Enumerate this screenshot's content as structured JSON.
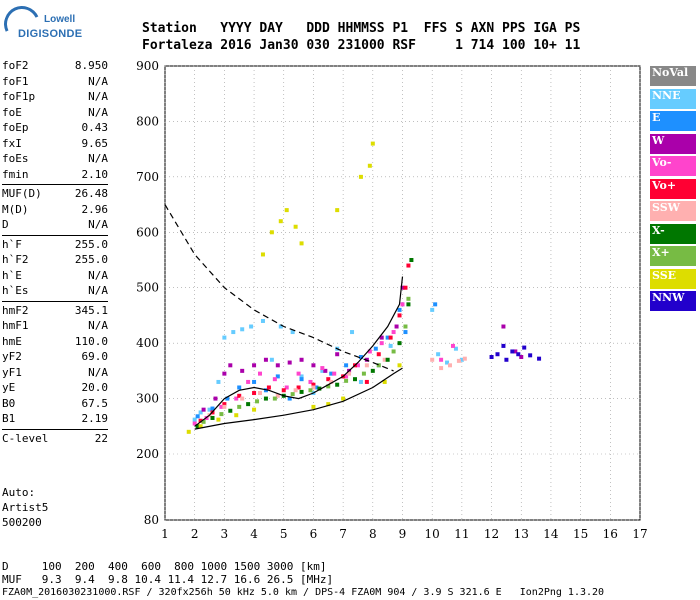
{
  "logo": {
    "line1": "Lowell",
    "line2": "DIGISONDE"
  },
  "header": {
    "labels": "Station   YYYY DAY   DDD HHMMSS P1  FFS S AXN PPS IGA PS",
    "values": "Fortaleza 2016 Jan30 030 231000 RSF     1 714 100 10+ 11"
  },
  "params": [
    [
      {
        "k": "foF2",
        "v": "8.950"
      },
      {
        "k": "foF1",
        "v": "N/A"
      },
      {
        "k": "foF1p",
        "v": "N/A"
      },
      {
        "k": "foE",
        "v": "N/A"
      },
      {
        "k": "foEp",
        "v": "0.43"
      },
      {
        "k": "fxI",
        "v": "9.65"
      },
      {
        "k": "foEs",
        "v": "N/A"
      },
      {
        "k": "fmin",
        "v": "2.10"
      }
    ],
    [
      {
        "k": "MUF(D)",
        "v": "26.48"
      },
      {
        "k": "M(D)",
        "v": "2.96"
      },
      {
        "k": "D",
        "v": "N/A"
      }
    ],
    [
      {
        "k": "h`F",
        "v": "255.0"
      },
      {
        "k": "h`F2",
        "v": "255.0"
      },
      {
        "k": "h`E",
        "v": "N/A"
      },
      {
        "k": "h`Es",
        "v": "N/A"
      }
    ],
    [
      {
        "k": "hmF2",
        "v": "345.1"
      },
      {
        "k": "hmF1",
        "v": "N/A"
      },
      {
        "k": "hmE",
        "v": "110.0"
      },
      {
        "k": "yF2",
        "v": "69.0"
      },
      {
        "k": "yF1",
        "v": "N/A"
      },
      {
        "k": "yE",
        "v": "20.0"
      },
      {
        "k": "B0",
        "v": "67.5"
      },
      {
        "k": "B1",
        "v": "2.19"
      }
    ],
    [
      {
        "k": "C-level",
        "v": "22"
      }
    ]
  ],
  "auto": {
    "line1": "Auto:",
    "line2": "Artist5",
    "line3": "500200"
  },
  "legend": [
    {
      "label": "NoVal",
      "color": "#888888"
    },
    {
      "label": "NNE",
      "color": "#66ccff"
    },
    {
      "label": "E",
      "color": "#1e90ff"
    },
    {
      "label": "W",
      "color": "#aa00aa"
    },
    {
      "label": "Vo-",
      "color": "#ff44cc"
    },
    {
      "label": "Vo+",
      "color": "#ff0033"
    },
    {
      "label": "SSW",
      "color": "#ffb0b0"
    },
    {
      "label": "X-",
      "color": "#007700"
    },
    {
      "label": "X+",
      "color": "#77bb44"
    },
    {
      "label": "SSE",
      "color": "#dddd00"
    },
    {
      "label": "NNW",
      "color": "#2200cc"
    }
  ],
  "muf_table": {
    "d_line": "D     100  200  400  600  800 1000 1500 3000 [km]",
    "muf_line": "MUF   9.3  9.4  9.8 10.4 11.4 12.7 16.6 26.5 [MHz]"
  },
  "footer": "FZA0M_2016030231000.RSF / 320fx256h 50 kHz 5.0 km / DPS-4 FZA0M 904 / 3.9 S 321.6 E   Ion2Png 1.3.20",
  "chart_data": {
    "type": "scatter",
    "xlim": [
      1,
      17
    ],
    "ylim": [
      80,
      900
    ],
    "x_ticks": [
      1,
      2,
      3,
      4,
      5,
      6,
      7,
      8,
      9,
      10,
      11,
      12,
      13,
      14,
      15,
      16,
      17
    ],
    "y_ticks": [
      80,
      200,
      300,
      400,
      500,
      600,
      700,
      800,
      900
    ],
    "grid": true,
    "legend_position": "right",
    "series": [
      {
        "name": "NoVal",
        "color": "#888888",
        "points": []
      },
      {
        "name": "NNE",
        "color": "#66ccff",
        "points": [
          [
            2.0,
            262
          ],
          [
            2.2,
            275
          ],
          [
            2.5,
            280
          ],
          [
            2.8,
            330
          ],
          [
            3.0,
            410
          ],
          [
            3.3,
            420
          ],
          [
            3.6,
            425
          ],
          [
            3.9,
            430
          ],
          [
            4.3,
            440
          ],
          [
            4.6,
            370
          ],
          [
            4.9,
            430
          ],
          [
            5.3,
            420
          ],
          [
            5.6,
            340
          ],
          [
            6.0,
            310
          ],
          [
            6.3,
            350
          ],
          [
            6.8,
            390
          ],
          [
            7.3,
            420
          ],
          [
            7.6,
            330
          ],
          [
            8.2,
            360
          ],
          [
            8.6,
            395
          ],
          [
            9.0,
            470
          ],
          [
            10.0,
            460
          ],
          [
            10.2,
            380
          ],
          [
            10.5,
            365
          ],
          [
            10.8,
            390
          ],
          [
            11.0,
            370
          ]
        ]
      },
      {
        "name": "E",
        "color": "#1e90ff",
        "points": [
          [
            2.1,
            268
          ],
          [
            2.6,
            282
          ],
          [
            3.1,
            300
          ],
          [
            3.5,
            320
          ],
          [
            4.0,
            330
          ],
          [
            4.4,
            315
          ],
          [
            4.8,
            340
          ],
          [
            5.2,
            300
          ],
          [
            5.6,
            335
          ],
          [
            6.1,
            320
          ],
          [
            6.6,
            345
          ],
          [
            7.1,
            360
          ],
          [
            7.6,
            375
          ],
          [
            8.1,
            390
          ],
          [
            8.5,
            410
          ],
          [
            8.9,
            460
          ],
          [
            9.1,
            420
          ],
          [
            10.1,
            470
          ]
        ]
      },
      {
        "name": "W",
        "color": "#aa00aa",
        "points": [
          [
            2.3,
            280
          ],
          [
            2.7,
            300
          ],
          [
            3.0,
            345
          ],
          [
            3.2,
            360
          ],
          [
            3.6,
            350
          ],
          [
            4.0,
            360
          ],
          [
            4.4,
            370
          ],
          [
            4.8,
            360
          ],
          [
            5.2,
            365
          ],
          [
            5.6,
            370
          ],
          [
            6.0,
            360
          ],
          [
            6.4,
            350
          ],
          [
            6.8,
            380
          ],
          [
            7.2,
            350
          ],
          [
            7.8,
            370
          ],
          [
            8.3,
            410
          ],
          [
            8.8,
            430
          ],
          [
            9.0,
            500
          ],
          [
            12.4,
            430
          ],
          [
            12.8,
            385
          ],
          [
            13.0,
            375
          ]
        ]
      },
      {
        "name": "Vo-",
        "color": "#ff44cc",
        "points": [
          [
            2.0,
            255
          ],
          [
            2.4,
            265
          ],
          [
            2.9,
            285
          ],
          [
            3.4,
            300
          ],
          [
            3.8,
            330
          ],
          [
            4.2,
            345
          ],
          [
            4.7,
            335
          ],
          [
            5.1,
            320
          ],
          [
            5.5,
            345
          ],
          [
            5.9,
            330
          ],
          [
            6.3,
            355
          ],
          [
            6.7,
            345
          ],
          [
            7.1,
            340
          ],
          [
            7.5,
            360
          ],
          [
            7.9,
            385
          ],
          [
            8.3,
            400
          ],
          [
            8.7,
            420
          ],
          [
            9.0,
            470
          ],
          [
            10.3,
            370
          ],
          [
            10.7,
            395
          ]
        ]
      },
      {
        "name": "Vo+",
        "color": "#ff0033",
        "points": [
          [
            2.2,
            260
          ],
          [
            2.6,
            275
          ],
          [
            3.0,
            290
          ],
          [
            3.5,
            305
          ],
          [
            4.0,
            310
          ],
          [
            4.5,
            320
          ],
          [
            5.0,
            315
          ],
          [
            5.5,
            320
          ],
          [
            6.0,
            325
          ],
          [
            6.5,
            335
          ],
          [
            7.0,
            340
          ],
          [
            7.4,
            360
          ],
          [
            7.8,
            330
          ],
          [
            8.2,
            380
          ],
          [
            8.6,
            410
          ],
          [
            8.9,
            450
          ],
          [
            9.1,
            500
          ],
          [
            9.2,
            540
          ]
        ]
      },
      {
        "name": "SSW",
        "color": "#ffb0b0",
        "points": [
          [
            2.5,
            270
          ],
          [
            3.0,
            285
          ],
          [
            3.6,
            300
          ],
          [
            4.2,
            310
          ],
          [
            4.8,
            305
          ],
          [
            5.4,
            315
          ],
          [
            6.0,
            320
          ],
          [
            6.6,
            330
          ],
          [
            7.2,
            345
          ],
          [
            7.8,
            360
          ],
          [
            8.4,
            370
          ],
          [
            10.0,
            370
          ],
          [
            10.3,
            355
          ],
          [
            10.6,
            360
          ],
          [
            10.9,
            368
          ],
          [
            11.1,
            372
          ]
        ]
      },
      {
        "name": "X-",
        "color": "#007700",
        "points": [
          [
            2.1,
            250
          ],
          [
            2.6,
            265
          ],
          [
            3.2,
            278
          ],
          [
            3.8,
            290
          ],
          [
            4.4,
            300
          ],
          [
            5.0,
            305
          ],
          [
            5.6,
            312
          ],
          [
            6.2,
            318
          ],
          [
            6.8,
            325
          ],
          [
            7.4,
            335
          ],
          [
            8.0,
            350
          ],
          [
            8.5,
            370
          ],
          [
            8.9,
            400
          ],
          [
            9.2,
            470
          ],
          [
            9.3,
            550
          ]
        ]
      },
      {
        "name": "X+",
        "color": "#77bb44",
        "points": [
          [
            2.3,
            258
          ],
          [
            2.9,
            272
          ],
          [
            3.5,
            285
          ],
          [
            4.1,
            295
          ],
          [
            4.7,
            300
          ],
          [
            5.3,
            308
          ],
          [
            5.9,
            315
          ],
          [
            6.5,
            322
          ],
          [
            7.1,
            332
          ],
          [
            7.7,
            345
          ],
          [
            8.2,
            360
          ],
          [
            8.7,
            385
          ],
          [
            9.1,
            430
          ],
          [
            9.2,
            480
          ]
        ]
      },
      {
        "name": "SSE",
        "color": "#dddd00",
        "points": [
          [
            1.8,
            240
          ],
          [
            2.2,
            250
          ],
          [
            2.8,
            262
          ],
          [
            3.4,
            270
          ],
          [
            4.0,
            280
          ],
          [
            4.3,
            560
          ],
          [
            4.6,
            600
          ],
          [
            4.9,
            620
          ],
          [
            5.1,
            640
          ],
          [
            5.4,
            610
          ],
          [
            5.6,
            580
          ],
          [
            6.0,
            285
          ],
          [
            6.5,
            290
          ],
          [
            6.8,
            640
          ],
          [
            7.0,
            300
          ],
          [
            7.6,
            700
          ],
          [
            7.9,
            720
          ],
          [
            8.0,
            760
          ],
          [
            8.4,
            330
          ],
          [
            8.9,
            360
          ]
        ]
      },
      {
        "name": "NNW",
        "color": "#2200cc",
        "points": [
          [
            12.0,
            375
          ],
          [
            12.2,
            380
          ],
          [
            12.4,
            395
          ],
          [
            12.5,
            370
          ],
          [
            12.7,
            385
          ],
          [
            12.9,
            380
          ],
          [
            13.1,
            392
          ],
          [
            13.3,
            378
          ],
          [
            13.6,
            372
          ]
        ]
      }
    ],
    "curves": [
      {
        "style": "dashed",
        "points": [
          [
            1,
            650
          ],
          [
            2,
            560
          ],
          [
            3,
            500
          ],
          [
            4,
            460
          ],
          [
            5,
            430
          ],
          [
            6,
            410
          ],
          [
            7,
            385
          ],
          [
            8,
            365
          ],
          [
            8.7,
            350
          ]
        ]
      },
      {
        "style": "solid",
        "points": [
          [
            2,
            245
          ],
          [
            3,
            255
          ],
          [
            4,
            262
          ],
          [
            5,
            270
          ],
          [
            6,
            280
          ],
          [
            7,
            295
          ],
          [
            8,
            320
          ],
          [
            8.7,
            345
          ],
          [
            9.0,
            355
          ]
        ]
      },
      {
        "style": "solid",
        "points": [
          [
            2,
            250
          ],
          [
            2.5,
            270
          ],
          [
            3,
            300
          ],
          [
            3.5,
            315
          ],
          [
            4,
            320
          ],
          [
            4.5,
            315
          ],
          [
            5,
            305
          ],
          [
            5.5,
            300
          ],
          [
            6,
            310
          ],
          [
            6.5,
            325
          ],
          [
            7,
            340
          ],
          [
            7.5,
            365
          ],
          [
            8,
            395
          ],
          [
            8.5,
            430
          ],
          [
            8.9,
            470
          ],
          [
            9.0,
            520
          ]
        ]
      }
    ]
  }
}
